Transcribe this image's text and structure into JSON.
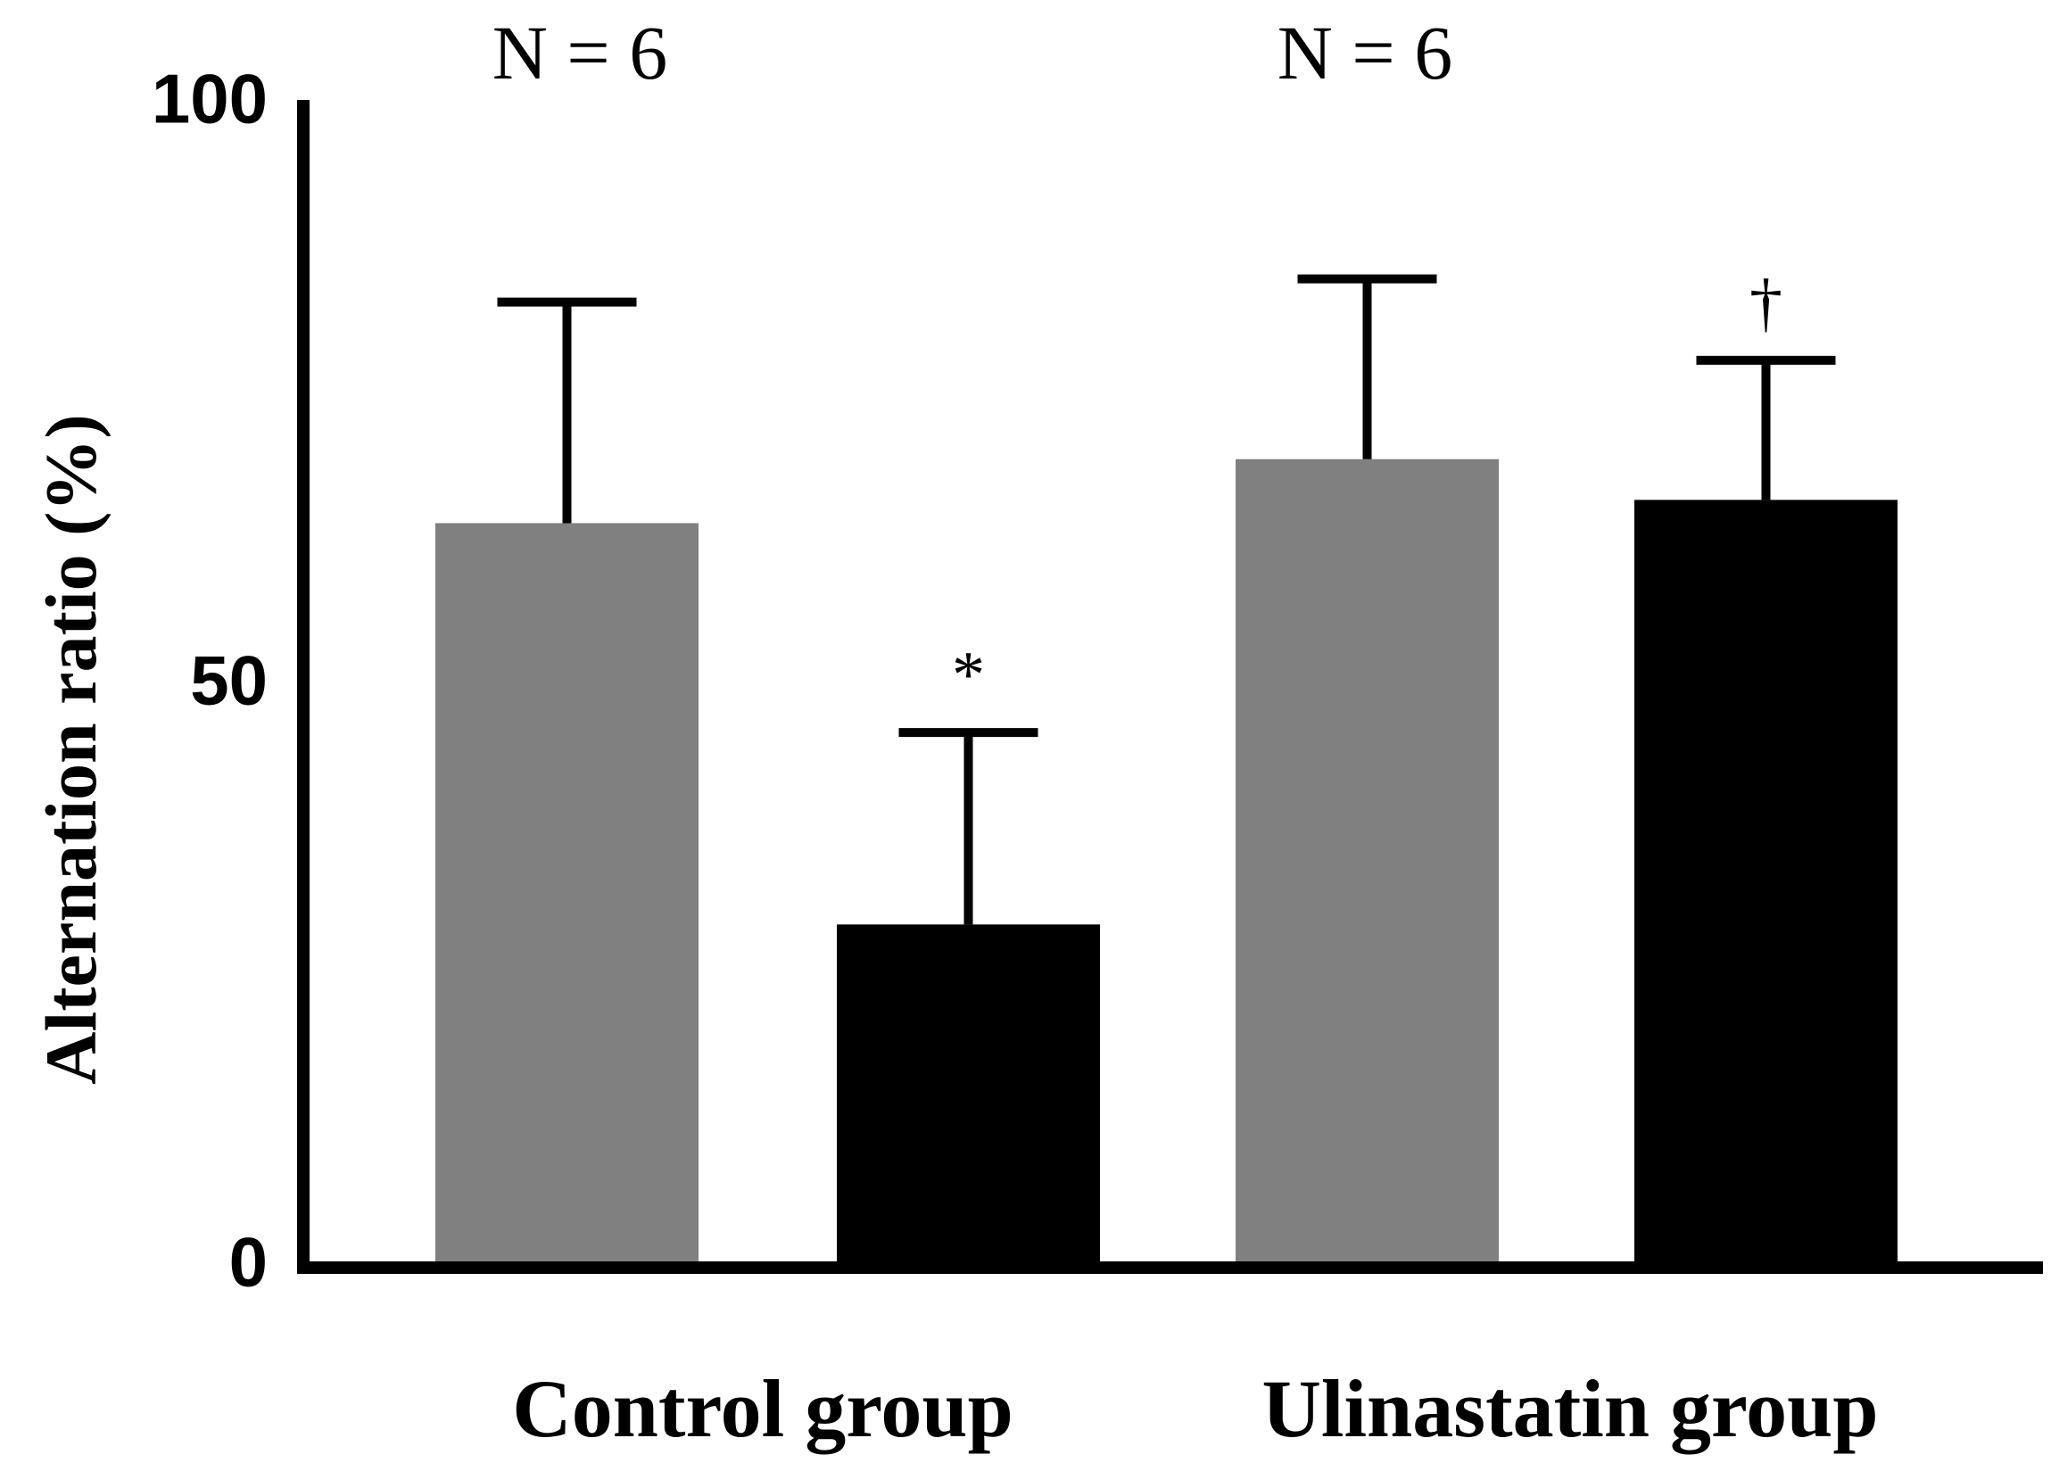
{
  "chart_data": {
    "type": "bar",
    "title": "",
    "xlabel": "",
    "ylabel": "Alternation ratio (%)",
    "ylim": [
      0,
      100
    ],
    "yticks": [
      "0",
      "50",
      "100"
    ],
    "grid": false,
    "categories": [
      "Control group",
      "Ulinastatin group"
    ],
    "group_n_labels": [
      "N = 6",
      "N = 6"
    ],
    "bars": [
      {
        "group": 0,
        "value": 64,
        "error": 19,
        "color": "#808080",
        "annotation": ""
      },
      {
        "group": 0,
        "value": 29.5,
        "error": 16.5,
        "color": "#000000",
        "annotation": "*"
      },
      {
        "group": 1,
        "value": 69.5,
        "error": 15.5,
        "color": "#808080",
        "annotation": ""
      },
      {
        "group": 1,
        "value": 66,
        "error": 12,
        "color": "#000000",
        "annotation": "†"
      }
    ]
  }
}
